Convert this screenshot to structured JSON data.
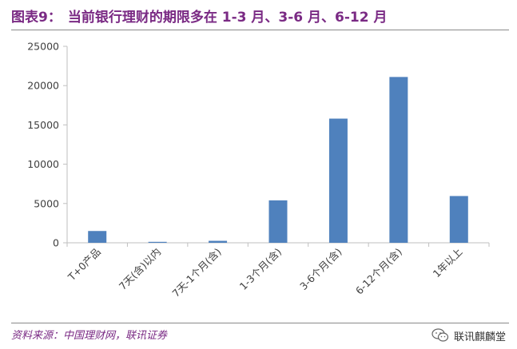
{
  "header": {
    "figure_label": "图表9：",
    "title": "当前银行理财的期限多在 1-3 月、3-6 月、6-12 月"
  },
  "footer": {
    "source": "资料来源：中国理财网，联讯证券",
    "brand_name": "联讯麒麟堂"
  },
  "colors": {
    "accent": "#7a2a84",
    "bar": "#4f81bd",
    "axis": "#bfbfbf",
    "grid": "#d9d9d9",
    "tick_text": "#404040"
  },
  "icons": {
    "brand_icon": "wechat-icon"
  },
  "chart_data": {
    "type": "bar",
    "title": "",
    "xlabel": "",
    "ylabel": "",
    "categories": [
      "T+0产品",
      "7天(含)以内",
      "7天-1个月(含)",
      "1-3个月(含)",
      "3-6个月(含)",
      "6-12个月(含)",
      "1年以上"
    ],
    "values": [
      1500,
      120,
      250,
      5400,
      15800,
      21100,
      5950
    ],
    "ylim": [
      0,
      25000
    ],
    "yticks": [
      0,
      5000,
      10000,
      15000,
      20000,
      25000
    ],
    "grid": false,
    "legend": "none"
  }
}
